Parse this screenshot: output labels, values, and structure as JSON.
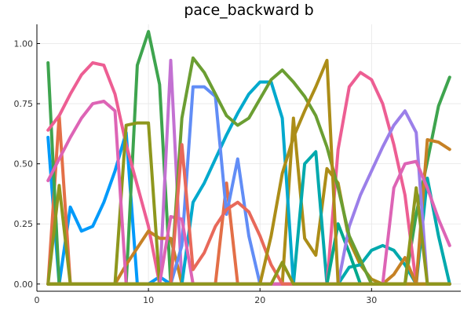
{
  "chart_data": {
    "type": "line",
    "title": "pace_backward b",
    "xlabel": "",
    "ylabel": "",
    "xlim": [
      0,
      38
    ],
    "ylim": [
      -0.03,
      1.08
    ],
    "xticks": [
      0,
      10,
      20,
      30
    ],
    "yticks": [
      0.0,
      0.25,
      0.5,
      0.75,
      1.0
    ],
    "xtick_labels": [
      "0",
      "10",
      "20",
      "30"
    ],
    "ytick_labels": [
      "0.00",
      "0.25",
      "0.50",
      "0.75",
      "1.00"
    ],
    "grid": true,
    "legend": "none",
    "x": [
      1,
      2,
      3,
      4,
      5,
      6,
      7,
      8,
      9,
      10,
      11,
      12,
      13,
      14,
      15,
      16,
      17,
      18,
      19,
      20,
      21,
      22,
      23,
      24,
      25,
      26,
      27,
      28,
      29,
      30,
      31,
      32,
      33,
      34,
      35,
      36,
      37
    ],
    "series": [
      {
        "color": "#009AFA",
        "values": [
          0.61,
          0.0,
          0.32,
          0.22,
          0.24,
          0.34,
          0.47,
          0.63,
          0.0,
          0.0,
          0.03,
          0.0,
          0.0,
          0.0,
          0.0,
          0.0,
          0.0,
          0.0,
          0.0,
          0.0,
          0.0,
          0.0,
          0.0,
          0.0,
          0.0,
          0.0,
          0.0,
          0.0,
          0.0,
          0.0,
          0.0,
          0.0,
          0.0,
          0.0,
          0.0,
          0.0,
          0.0
        ]
      },
      {
        "color": "#E36F47",
        "values": [
          0.0,
          0.7,
          0.0,
          0.0,
          0.0,
          0.0,
          0.0,
          0.0,
          0.0,
          0.0,
          0.0,
          0.0,
          0.0,
          0.0,
          0.0,
          0.0,
          0.42,
          0.0,
          0.0,
          0.0,
          0.0,
          0.0,
          0.0,
          0.0,
          0.0,
          0.0,
          0.0,
          0.0,
          0.0,
          0.0,
          0.0,
          0.0,
          0.0,
          0.0,
          0.0,
          0.0,
          0.0
        ]
      },
      {
        "color": "#3EA44E",
        "values": [
          0.92,
          0.0,
          0.0,
          0.0,
          0.0,
          0.0,
          0.0,
          0.0,
          0.91,
          1.05,
          0.83,
          0.0,
          0.0,
          0.0,
          0.0,
          0.0,
          0.0,
          0.0,
          0.0,
          0.0,
          0.0,
          0.0,
          0.0,
          0.0,
          0.0,
          0.0,
          0.0,
          0.0,
          0.0,
          0.0,
          0.0,
          0.0,
          0.0,
          0.29,
          0.51,
          0.74,
          0.86
        ]
      },
      {
        "color": "#C371D2",
        "values": [
          0.0,
          0.0,
          0.0,
          0.0,
          0.0,
          0.0,
          0.0,
          0.0,
          0.0,
          0.0,
          0.0,
          0.93,
          0.0,
          0.0,
          0.0,
          0.0,
          0.0,
          0.0,
          0.0,
          0.0,
          0.0,
          0.0,
          0.0,
          0.0,
          0.0,
          0.0,
          0.0,
          0.0,
          0.0,
          0.0,
          0.0,
          0.0,
          0.0,
          0.0,
          0.0,
          0.0,
          0.0
        ]
      },
      {
        "color": "#AC8D18",
        "values": [
          0.0,
          0.0,
          0.0,
          0.0,
          0.0,
          0.0,
          0.0,
          0.0,
          0.0,
          0.0,
          0.0,
          0.0,
          0.0,
          0.0,
          0.0,
          0.0,
          0.0,
          0.0,
          0.0,
          0.0,
          0.0,
          0.0,
          0.69,
          0.19,
          0.12,
          0.48,
          0.42,
          0.18,
          0.08,
          0.02,
          0.0,
          0.0,
          0.0,
          0.0,
          0.0,
          0.0,
          0.0
        ]
      },
      {
        "color": "#00A9AD",
        "values": [
          0.0,
          0.0,
          0.0,
          0.0,
          0.0,
          0.0,
          0.0,
          0.0,
          0.0,
          0.0,
          0.0,
          0.0,
          0.0,
          0.0,
          0.0,
          0.0,
          0.0,
          0.0,
          0.0,
          0.0,
          0.0,
          0.0,
          0.0,
          0.5,
          0.55,
          0.0,
          0.0,
          0.07,
          0.08,
          0.14,
          0.16,
          0.14,
          0.08,
          0.0,
          0.44,
          0.2,
          0.0
        ]
      },
      {
        "color": "#ED5E93",
        "values": [
          0.64,
          0.7,
          0.79,
          0.87,
          0.92,
          0.91,
          0.79,
          0.58,
          0.41,
          0.24,
          0.0,
          0.0,
          0.0,
          0.0,
          0.0,
          0.0,
          0.0,
          0.0,
          0.0,
          0.0,
          0.0,
          0.0,
          0.0,
          0.0,
          0.0,
          0.0,
          0.56,
          0.82,
          0.88,
          0.85,
          0.75,
          0.58,
          0.37,
          0.0,
          0.0,
          0.0,
          0.0
        ]
      },
      {
        "color": "#C68125",
        "values": [
          0.0,
          0.0,
          0.0,
          0.0,
          0.0,
          0.0,
          0.0,
          0.08,
          0.15,
          0.22,
          0.19,
          0.19,
          0.0,
          0.0,
          0.0,
          0.0,
          0.0,
          0.0,
          0.0,
          0.0,
          0.0,
          0.0,
          0.0,
          0.0,
          0.0,
          0.0,
          0.0,
          0.0,
          0.0,
          0.0,
          0.0,
          0.04,
          0.11,
          0.0,
          0.6,
          0.59,
          0.56
        ]
      },
      {
        "color": "#00A98D",
        "values": [
          0.0,
          0.0,
          0.0,
          0.0,
          0.0,
          0.0,
          0.0,
          0.0,
          0.0,
          0.0,
          0.0,
          0.0,
          0.0,
          0.0,
          0.0,
          0.0,
          0.0,
          0.0,
          0.0,
          0.0,
          0.0,
          0.0,
          0.0,
          0.0,
          0.0,
          0.0,
          0.25,
          0.13,
          0.0,
          0.0,
          0.0,
          0.0,
          0.0,
          0.0,
          0.0,
          0.0,
          0.0
        ]
      },
      {
        "color": "#8E971D",
        "values": [
          0.0,
          0.41,
          0.0,
          0.0,
          0.0,
          0.0,
          0.0,
          0.66,
          0.67,
          0.67,
          0.0,
          0.0,
          0.0,
          0.0,
          0.0,
          0.0,
          0.0,
          0.0,
          0.0,
          0.0,
          0.0,
          0.0,
          0.0,
          0.0,
          0.0,
          0.0,
          0.0,
          0.0,
          0.0,
          0.0,
          0.0,
          0.0,
          0.0,
          0.0,
          0.0,
          0.0,
          0.0
        ]
      },
      {
        "color": "#00A9CD",
        "values": [
          0.0,
          0.0,
          0.0,
          0.0,
          0.0,
          0.0,
          0.0,
          0.0,
          0.0,
          0.0,
          0.0,
          0.0,
          0.0,
          0.34,
          0.42,
          0.52,
          0.62,
          0.71,
          0.79,
          0.84,
          0.84,
          0.69,
          0.0,
          0.0,
          0.0,
          0.0,
          0.0,
          0.0,
          0.0,
          0.0,
          0.0,
          0.0,
          0.0,
          0.0,
          0.0,
          0.0,
          0.0
        ]
      },
      {
        "color": "#9B7FE9",
        "values": [
          0.0,
          0.0,
          0.0,
          0.0,
          0.0,
          0.0,
          0.0,
          0.0,
          0.0,
          0.0,
          0.0,
          0.0,
          0.0,
          0.0,
          0.0,
          0.0,
          0.0,
          0.0,
          0.0,
          0.0,
          0.0,
          0.0,
          0.0,
          0.0,
          0.0,
          0.0,
          0.0,
          0.24,
          0.37,
          0.47,
          0.57,
          0.66,
          0.72,
          0.63,
          0.0,
          0.0,
          0.0
        ]
      },
      {
        "color": "#618DF6",
        "values": [
          0.0,
          0.0,
          0.0,
          0.0,
          0.0,
          0.0,
          0.0,
          0.0,
          0.0,
          0.0,
          0.0,
          0.0,
          0.16,
          0.82,
          0.82,
          0.78,
          0.29,
          0.52,
          0.2,
          0.0,
          0.0,
          0.0,
          0.0,
          0.0,
          0.0,
          0.0,
          0.0,
          0.0,
          0.0,
          0.0,
          0.0,
          0.0,
          0.0,
          0.0,
          0.0,
          0.0,
          0.0
        ]
      },
      {
        "color": "#F05F73",
        "values": [
          0.0,
          0.0,
          0.0,
          0.0,
          0.0,
          0.0,
          0.0,
          0.0,
          0.0,
          0.0,
          0.0,
          0.0,
          0.0,
          0.0,
          0.0,
          0.0,
          0.0,
          0.0,
          0.0,
          0.0,
          0.0,
          0.0,
          0.0,
          0.0,
          0.0,
          0.0,
          0.0,
          0.0,
          0.0,
          0.0,
          0.0,
          0.0,
          0.0,
          0.0,
          0.0,
          0.0,
          0.0
        ]
      },
      {
        "color": "#DD64B5",
        "values": [
          0.43,
          0.52,
          0.61,
          0.69,
          0.75,
          0.76,
          0.72,
          0.0,
          0.0,
          0.0,
          0.0,
          0.28,
          0.27,
          0.0,
          0.0,
          0.0,
          0.0,
          0.0,
          0.0,
          0.0,
          0.0,
          0.0,
          0.0,
          0.0,
          0.0,
          0.0,
          0.0,
          0.0,
          0.0,
          0.0,
          0.0,
          0.4,
          0.5,
          0.51,
          0.4,
          0.27,
          0.16
        ]
      },
      {
        "color": "#6B9E32",
        "values": [
          0.0,
          0.0,
          0.0,
          0.0,
          0.0,
          0.0,
          0.0,
          0.0,
          0.0,
          0.0,
          0.0,
          0.0,
          0.69,
          0.94,
          0.88,
          0.79,
          0.7,
          0.66,
          0.69,
          0.77,
          0.85,
          0.89,
          0.84,
          0.78,
          0.7,
          0.57,
          0.4,
          0.2,
          0.1,
          0.0,
          0.0,
          0.0,
          0.0,
          0.0,
          0.0,
          0.0,
          0.0
        ]
      },
      {
        "color": "#E8695A",
        "values": [
          0.0,
          0.0,
          0.0,
          0.0,
          0.0,
          0.0,
          0.0,
          0.0,
          0.0,
          0.0,
          0.0,
          0.0,
          0.58,
          0.06,
          0.13,
          0.24,
          0.31,
          0.34,
          0.3,
          0.2,
          0.08,
          0.0,
          0.0,
          0.0,
          0.0,
          0.0,
          0.0,
          0.0,
          0.0,
          0.0,
          0.0,
          0.0,
          0.0,
          0.0,
          0.0,
          0.0,
          0.0
        ]
      },
      {
        "color": "#AC8D18",
        "values": [
          0.0,
          0.0,
          0.0,
          0.0,
          0.0,
          0.0,
          0.0,
          0.0,
          0.0,
          0.0,
          0.0,
          0.0,
          0.0,
          0.0,
          0.0,
          0.0,
          0.0,
          0.0,
          0.0,
          0.0,
          0.2,
          0.46,
          0.61,
          0.72,
          0.82,
          0.93,
          0.0,
          0.0,
          0.0,
          0.0,
          0.0,
          0.0,
          0.0,
          0.0,
          0.0,
          0.0,
          0.0
        ]
      },
      {
        "color": "#8E971D",
        "values": [
          0.0,
          0.0,
          0.0,
          0.0,
          0.0,
          0.0,
          0.0,
          0.0,
          0.0,
          0.0,
          0.0,
          0.0,
          0.0,
          0.0,
          0.0,
          0.0,
          0.0,
          0.0,
          0.0,
          0.0,
          0.0,
          0.09,
          0.0,
          0.0,
          0.0,
          0.0,
          0.0,
          0.0,
          0.0,
          0.0,
          0.0,
          0.0,
          0.0,
          0.4,
          0.0,
          0.0,
          0.0
        ]
      }
    ]
  }
}
